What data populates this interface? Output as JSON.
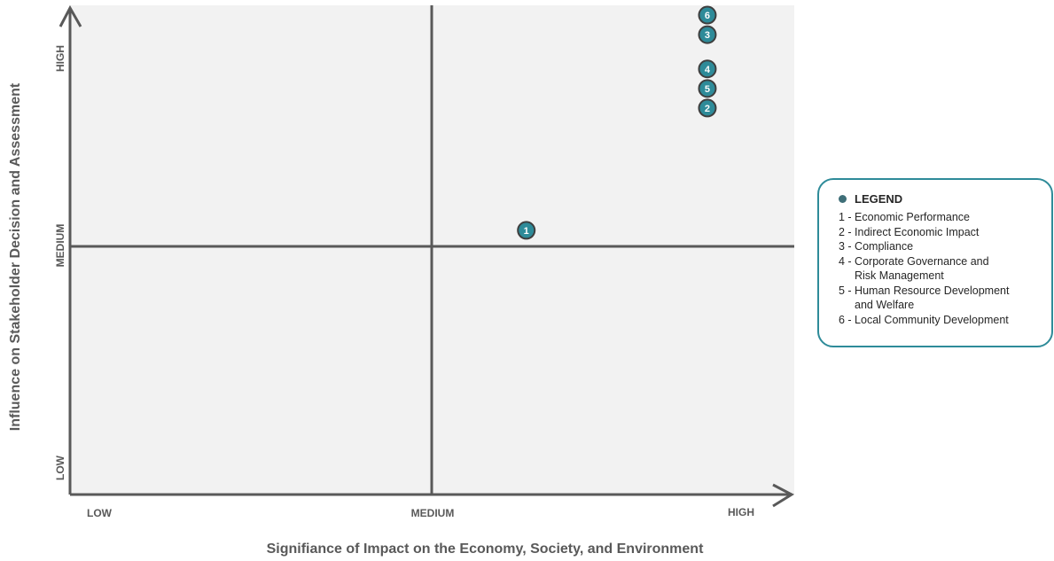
{
  "chart_data": {
    "type": "scatter",
    "title": "",
    "xlabel": "Signifiance of Impact on the Economy, Society, and Environment",
    "ylabel": "Influence on Stakeholder Decision and Assessment",
    "x_tick_labels": [
      "LOW",
      "MEDIUM",
      "HIGH"
    ],
    "y_tick_labels": [
      "LOW",
      "MEDIUM",
      "HIGH"
    ],
    "xlim": [
      0,
      1
    ],
    "ylim": [
      0,
      1
    ],
    "grid": false,
    "legend_position": "right",
    "points": [
      {
        "label": "1",
        "x": 0.63,
        "y": 0.54
      },
      {
        "label": "2",
        "x": 0.88,
        "y": 0.79
      },
      {
        "label": "3",
        "x": 0.88,
        "y": 0.94
      },
      {
        "label": "4",
        "x": 0.88,
        "y": 0.87
      },
      {
        "label": "5",
        "x": 0.88,
        "y": 0.83
      },
      {
        "label": "6",
        "x": 0.88,
        "y": 0.98
      }
    ],
    "colors": {
      "marker": "#2e8b99",
      "marker_outline": "#3f3f3f",
      "axis": "#595959",
      "plot_background": "#f2f2f2",
      "legend_border": "#2e8b99"
    }
  },
  "legend": {
    "title": "LEGEND",
    "items": [
      [
        "1 - Economic Performance"
      ],
      [
        "2 - Indirect Economic Impact"
      ],
      [
        "3 - Compliance"
      ],
      [
        "4 - Corporate Governance and",
        "Risk Management"
      ],
      [
        "5 - Human Resource Development",
        "and Welfare"
      ],
      [
        "6 - Local Community Development"
      ]
    ]
  }
}
